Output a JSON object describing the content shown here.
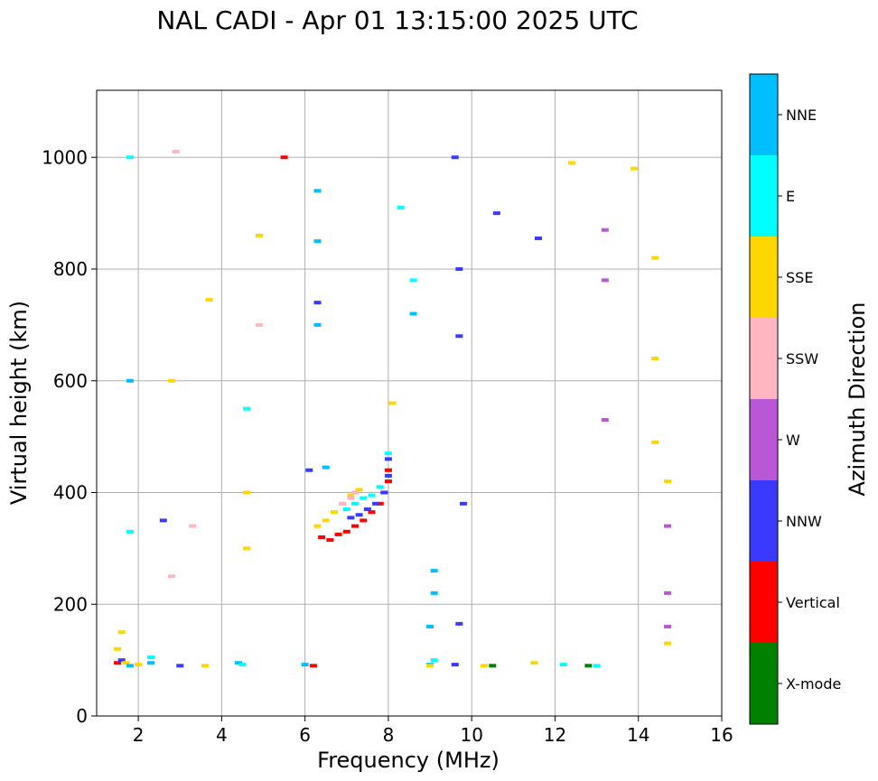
{
  "chart_data": {
    "type": "scatter",
    "title": "NAL CADI - Apr 01 13:15:00 2025 UTC",
    "xlabel": "Frequency (MHz)",
    "ylabel": "Virtual height (km)",
    "xlim": [
      1,
      16
    ],
    "ylim": [
      0,
      1120
    ],
    "xticks": [
      2,
      4,
      6,
      8,
      10,
      12,
      14,
      16
    ],
    "yticks": [
      0,
      200,
      400,
      600,
      800,
      1000
    ],
    "grid": true,
    "colorbar": {
      "label": "Azimuth Direction",
      "categories": [
        {
          "name": "X-mode",
          "color": "#008000"
        },
        {
          "name": "Vertical",
          "color": "#ff0000"
        },
        {
          "name": "NNW",
          "color": "#3a3aff"
        },
        {
          "name": "W",
          "color": "#b957d6"
        },
        {
          "name": "SSW",
          "color": "#ffb6c1"
        },
        {
          "name": "SSE",
          "color": "#ffd700"
        },
        {
          "name": "E",
          "color": "#00ffff"
        },
        {
          "name": "NNE",
          "color": "#00bfff"
        }
      ]
    },
    "echo_traces": [
      {
        "name": "F-region trace (Vertical)",
        "direction": "Vertical",
        "points": [
          [
            6.4,
            320
          ],
          [
            6.6,
            315
          ],
          [
            6.8,
            325
          ],
          [
            7.0,
            330
          ],
          [
            7.2,
            340
          ],
          [
            7.4,
            350
          ],
          [
            7.6,
            365
          ],
          [
            7.8,
            380
          ],
          [
            7.9,
            400
          ],
          [
            8.0,
            420
          ],
          [
            8.0,
            440
          ]
        ]
      },
      {
        "name": "F-region trace (NNW)",
        "direction": "NNW",
        "points": [
          [
            7.1,
            355
          ],
          [
            7.3,
            360
          ],
          [
            7.5,
            370
          ],
          [
            7.7,
            380
          ],
          [
            7.9,
            400
          ],
          [
            8.0,
            430
          ],
          [
            8.0,
            460
          ]
        ]
      },
      {
        "name": "F-region trace (E)",
        "direction": "E",
        "points": [
          [
            7.0,
            370
          ],
          [
            7.2,
            380
          ],
          [
            7.4,
            390
          ],
          [
            7.6,
            395
          ],
          [
            7.8,
            410
          ],
          [
            8.0,
            470
          ]
        ]
      },
      {
        "name": "F-region trace (SSE)",
        "direction": "SSE",
        "points": [
          [
            6.3,
            340
          ],
          [
            6.5,
            350
          ],
          [
            6.7,
            365
          ],
          [
            6.9,
            380
          ],
          [
            7.1,
            395
          ],
          [
            7.3,
            405
          ]
        ]
      },
      {
        "name": "F-region trace (SSW)",
        "direction": "SSW",
        "points": [
          [
            6.9,
            380
          ],
          [
            7.1,
            390
          ],
          [
            7.2,
            400
          ]
        ]
      },
      {
        "name": "E-region echoes",
        "direction": "mixed",
        "points": [
          [
            1.5,
            95,
            "Vertical"
          ],
          [
            1.6,
            100,
            "NNW"
          ],
          [
            1.7,
            95,
            "SSE"
          ],
          [
            1.8,
            90,
            "NNE"
          ],
          [
            2.0,
            92,
            "SSE"
          ],
          [
            2.3,
            95,
            "NNE"
          ],
          [
            2.3,
            105,
            "E"
          ],
          [
            3.0,
            90,
            "NNW"
          ],
          [
            3.6,
            90,
            "SSE"
          ],
          [
            4.4,
            95,
            "NNE"
          ],
          [
            4.5,
            92,
            "E"
          ],
          [
            6.2,
            90,
            "Vertical"
          ],
          [
            6.0,
            92,
            "NNE"
          ],
          [
            9.0,
            92,
            "NNE"
          ],
          [
            9.1,
            100,
            "E"
          ],
          [
            9.0,
            90,
            "SSE"
          ],
          [
            9.6,
            92,
            "NNW"
          ],
          [
            10.3,
            90,
            "SSE"
          ],
          [
            10.5,
            90,
            "X-mode"
          ],
          [
            11.5,
            95,
            "SSE"
          ],
          [
            12.2,
            92,
            "E"
          ],
          [
            12.8,
            90,
            "X-mode"
          ],
          [
            13.0,
            90,
            "E"
          ]
        ]
      },
      {
        "name": "Noise columns",
        "direction": "mixed",
        "points": [
          [
            1.5,
            120,
            "SSE"
          ],
          [
            1.6,
            150,
            "SSE"
          ],
          [
            1.8,
            330,
            "E"
          ],
          [
            1.8,
            600,
            "NNE"
          ],
          [
            1.8,
            1000,
            "E"
          ],
          [
            2.6,
            350,
            "NNW"
          ],
          [
            2.8,
            250,
            "SSW"
          ],
          [
            2.8,
            600,
            "SSE"
          ],
          [
            2.9,
            1010,
            "SSW"
          ],
          [
            3.3,
            340,
            "SSW"
          ],
          [
            3.7,
            745,
            "SSE"
          ],
          [
            4.6,
            300,
            "SSE"
          ],
          [
            4.6,
            400,
            "SSE"
          ],
          [
            4.6,
            550,
            "E"
          ],
          [
            4.9,
            700,
            "SSW"
          ],
          [
            4.9,
            860,
            "SSE"
          ],
          [
            5.5,
            1000,
            "Vertical"
          ],
          [
            6.3,
            850,
            "NNE"
          ],
          [
            6.3,
            940,
            "NNE"
          ],
          [
            6.3,
            740,
            "NNW"
          ],
          [
            6.3,
            700,
            "NNE"
          ],
          [
            6.1,
            440,
            "NNW"
          ],
          [
            6.5,
            445,
            "NNE"
          ],
          [
            8.1,
            560,
            "SSE"
          ],
          [
            8.3,
            910,
            "E"
          ],
          [
            8.6,
            720,
            "NNE"
          ],
          [
            8.6,
            780,
            "E"
          ],
          [
            9.1,
            260,
            "NNE"
          ],
          [
            9.1,
            220,
            "NNE"
          ],
          [
            9.0,
            160,
            "NNE"
          ],
          [
            9.6,
            1000,
            "NNW"
          ],
          [
            9.7,
            800,
            "NNW"
          ],
          [
            9.7,
            680,
            "NNW"
          ],
          [
            9.8,
            380,
            "NNW"
          ],
          [
            9.7,
            165,
            "NNW"
          ],
          [
            10.6,
            900,
            "NNW"
          ],
          [
            11.6,
            855,
            "NNW"
          ],
          [
            12.4,
            990,
            "SSE"
          ],
          [
            13.2,
            870,
            "W"
          ],
          [
            13.2,
            780,
            "W"
          ],
          [
            13.2,
            530,
            "W"
          ],
          [
            13.9,
            980,
            "SSE"
          ],
          [
            14.4,
            820,
            "SSE"
          ],
          [
            14.4,
            640,
            "SSE"
          ],
          [
            14.4,
            490,
            "SSE"
          ],
          [
            14.7,
            420,
            "SSE"
          ],
          [
            14.7,
            340,
            "W"
          ],
          [
            14.7,
            220,
            "W"
          ],
          [
            14.7,
            160,
            "W"
          ],
          [
            14.7,
            130,
            "SSE"
          ]
        ]
      }
    ]
  }
}
